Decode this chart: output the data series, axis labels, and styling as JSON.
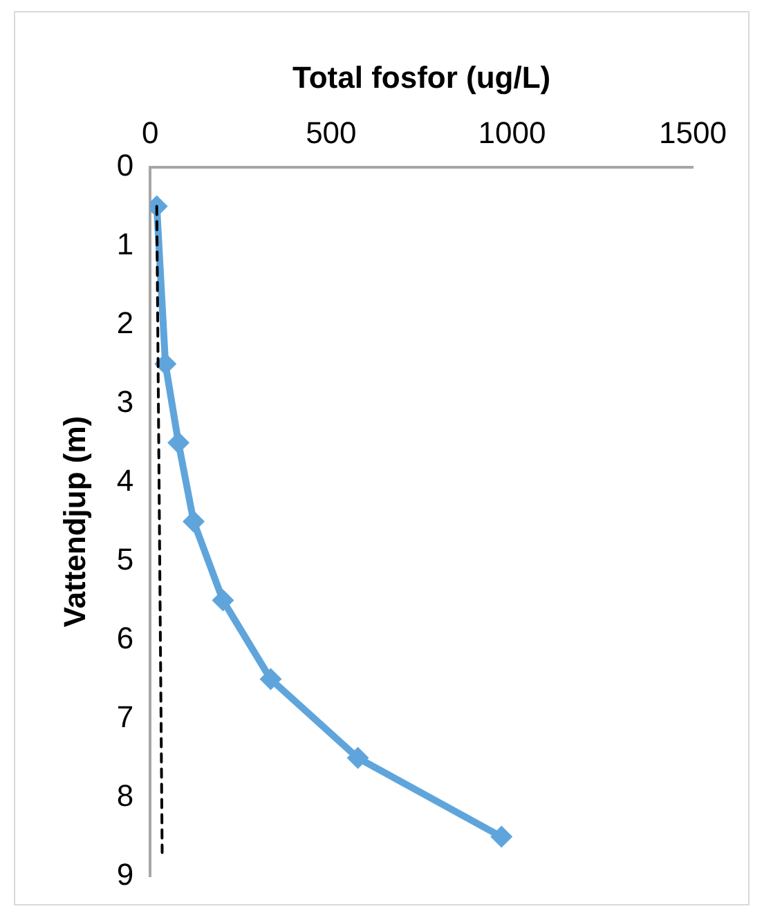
{
  "chart_data": {
    "type": "line",
    "xlabel": "Total fosfor (ug/L)",
    "ylabel": "Vattendjup (m)",
    "xlim": [
      0,
      1500
    ],
    "xticks": [
      0,
      500,
      1000,
      1500
    ],
    "ylim": [
      9,
      0
    ],
    "yticks": [
      0,
      1,
      2,
      3,
      4,
      5,
      6,
      7,
      8,
      9
    ],
    "grid": false,
    "legend": false,
    "series": [
      {
        "color": "#5fa5dc",
        "marker": "diamond",
        "line_style": "solid",
        "x": [
          18,
          42,
          78,
          120,
          201,
          333,
          574,
          971
        ],
        "values": [
          0.5,
          2.5,
          3.5,
          4.5,
          5.5,
          6.5,
          7.5,
          8.5
        ]
      },
      {
        "type": "line",
        "color": "#000000",
        "marker": "none",
        "line_style": "dashed",
        "x": [
          18,
          33
        ],
        "values": [
          0.5,
          8.7
        ]
      }
    ]
  }
}
